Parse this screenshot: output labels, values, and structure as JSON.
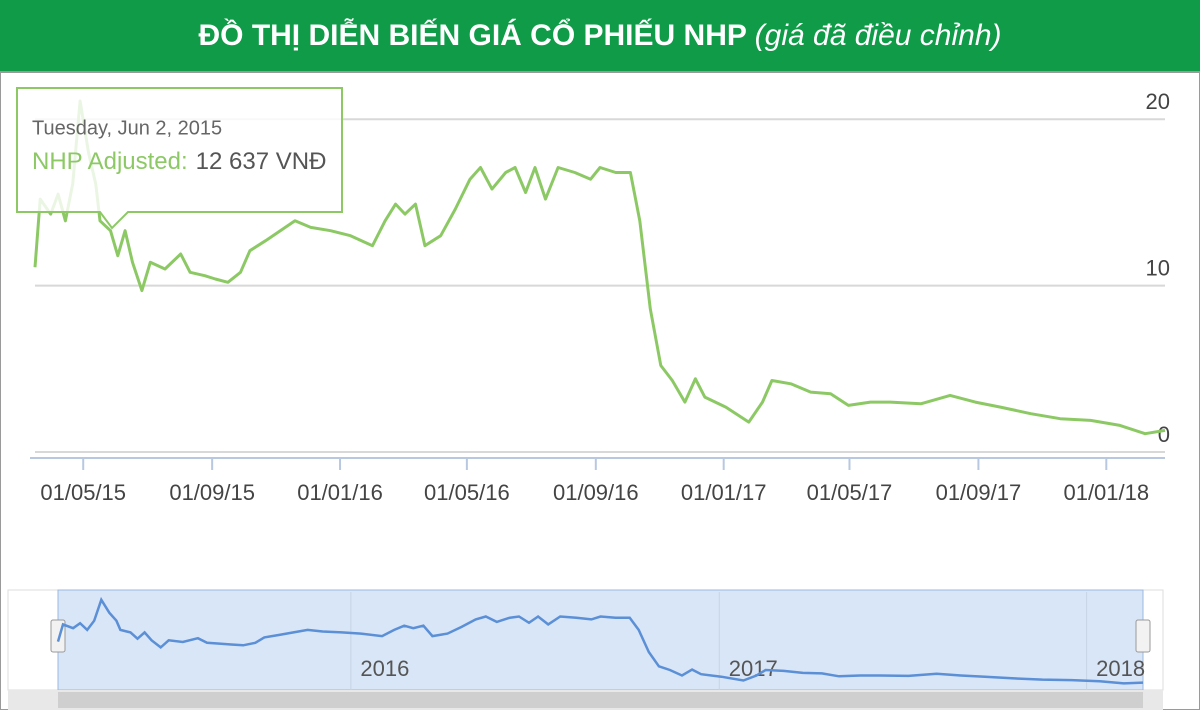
{
  "chart_data": {
    "type": "line",
    "title": "ĐỒ THỊ DIỄN BIẾN GIÁ CỔ PHIẾU NHP",
    "subtitle": "(giá đã điều chỉnh)",
    "color": "#8cc965",
    "navigator_color": "#5b8fd6",
    "grid": true,
    "xlim": [
      "2015-03-16",
      "2018-02-26"
    ],
    "ylim": [
      0,
      22
    ],
    "yticks": [
      0,
      10,
      20
    ],
    "xticks": [
      {
        "value": "2015-05-01",
        "label": "01/05/15"
      },
      {
        "value": "2015-09-01",
        "label": "01/09/15"
      },
      {
        "value": "2016-01-01",
        "label": "01/01/16"
      },
      {
        "value": "2016-05-01",
        "label": "01/05/16"
      },
      {
        "value": "2016-09-01",
        "label": "01/09/16"
      },
      {
        "value": "2017-01-01",
        "label": "01/01/17"
      },
      {
        "value": "2017-05-01",
        "label": "01/05/17"
      },
      {
        "value": "2017-09-01",
        "label": "01/09/17"
      },
      {
        "value": "2018-01-01",
        "label": "01/01/18"
      }
    ],
    "navigator_ticks": [
      {
        "value": "2016-01-01",
        "label": "2016"
      },
      {
        "value": "2017-01-01",
        "label": "2017"
      },
      {
        "value": "2018-01-01",
        "label": "2018"
      }
    ],
    "tooltip": {
      "date_label": "Tuesday, Jun 2, 2015",
      "series_label": "NHP Adjusted:",
      "value_label": "12 637 VNĐ"
    },
    "x": [
      "2015-03-16",
      "2015-03-21",
      "2015-03-31",
      "2015-04-07",
      "2015-04-14",
      "2015-04-21",
      "2015-04-28",
      "2015-05-06",
      "2015-05-13",
      "2015-05-17",
      "2015-05-27",
      "2015-06-03",
      "2015-06-10",
      "2015-06-17",
      "2015-06-26",
      "2015-07-04",
      "2015-07-18",
      "2015-08-02",
      "2015-08-11",
      "2015-08-25",
      "2015-09-04",
      "2015-09-16",
      "2015-09-28",
      "2015-10-07",
      "2015-10-22",
      "2015-11-05",
      "2015-11-19",
      "2015-12-04",
      "2015-12-23",
      "2016-01-11",
      "2016-02-01",
      "2016-02-13",
      "2016-02-23",
      "2016-03-03",
      "2016-03-13",
      "2016-03-22",
      "2016-04-06",
      "2016-04-20",
      "2016-05-04",
      "2016-05-14",
      "2016-05-25",
      "2016-06-07",
      "2016-06-16",
      "2016-06-26",
      "2016-07-05",
      "2016-07-15",
      "2016-07-27",
      "2016-08-12",
      "2016-08-27",
      "2016-09-05",
      "2016-09-20",
      "2016-10-04",
      "2016-10-13",
      "2016-10-23",
      "2016-11-02",
      "2016-11-13",
      "2016-11-25",
      "2016-12-05",
      "2016-12-14",
      "2017-01-03",
      "2017-01-25",
      "2017-02-07",
      "2017-02-16",
      "2017-03-06",
      "2017-03-25",
      "2017-04-13",
      "2017-04-30",
      "2017-05-21",
      "2017-06-09",
      "2017-07-08",
      "2017-08-05",
      "2017-08-29",
      "2017-09-22",
      "2017-10-21",
      "2017-11-18",
      "2017-12-17",
      "2018-01-14",
      "2018-02-07",
      "2018-02-26"
    ],
    "values": [
      11.1,
      15.2,
      14.3,
      15.5,
      13.9,
      16.1,
      21.1,
      18,
      16.1,
      13.9,
      13.3,
      11.8,
      13.3,
      11.4,
      9.7,
      11.4,
      11,
      11.9,
      10.8,
      10.6,
      10.4,
      10.2,
      10.8,
      12.1,
      12.7,
      13.3,
      13.9,
      13.5,
      13.3,
      13,
      12.4,
      13.9,
      14.9,
      14.3,
      14.9,
      12.4,
      13,
      14.6,
      16.4,
      17.1,
      15.8,
      16.8,
      17.1,
      15.6,
      17.1,
      15.2,
      17.1,
      16.8,
      16.4,
      17.1,
      16.8,
      16.8,
      13.9,
      8.6,
      5.2,
      4.3,
      3,
      4.4,
      3.3,
      2.7,
      1.8,
      3,
      4.3,
      4.1,
      3.6,
      3.5,
      2.8,
      3,
      3,
      2.9,
      3.4,
      3,
      2.7,
      2.3,
      2,
      1.9,
      1.6,
      1.1,
      1.3
    ]
  }
}
